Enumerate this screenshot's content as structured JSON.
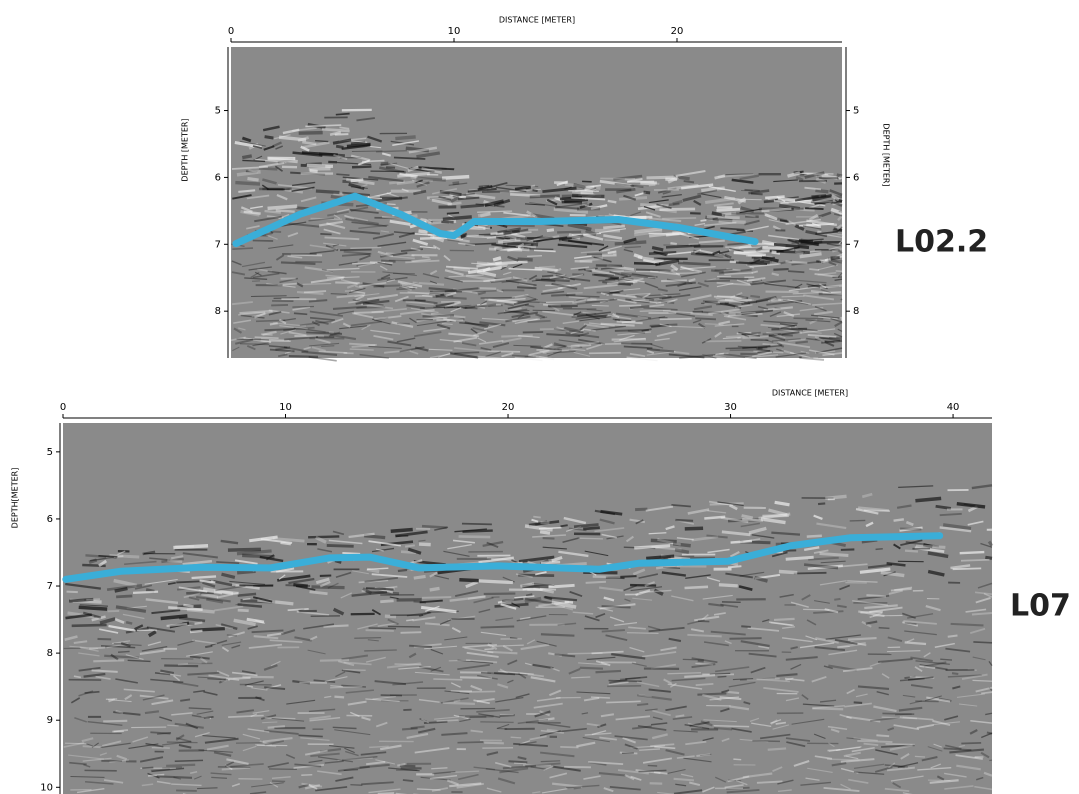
{
  "chart_data": [
    {
      "type": "line",
      "label": "L02.2",
      "xlabel": "DISTANCE [METER]",
      "ylabel": "DEPTH [METER]",
      "xlim": [
        0,
        27.4
      ],
      "ylim": [
        4.05,
        8.7
      ],
      "xticks": [
        0,
        10,
        20
      ],
      "yticks": [
        5,
        6,
        7,
        8
      ],
      "y_inverted": true,
      "right_axis": true,
      "series": [
        {
          "color": "#3aaed8",
          "x": [
            0.22,
            3.1,
            5.56,
            7.6,
            9.4,
            10.0,
            10.9,
            13.9,
            17.4,
            20.1,
            23.5
          ],
          "values": [
            6.99,
            6.55,
            6.28,
            6.55,
            6.84,
            6.87,
            6.66,
            6.66,
            6.63,
            6.75,
            6.96
          ]
        }
      ]
    },
    {
      "type": "line",
      "label": "L07",
      "xlabel": "DISTANCE [METER]",
      "ylabel": "DEPTH[METER]",
      "xlim": [
        0,
        41.75
      ],
      "ylim": [
        4.57,
        10.1
      ],
      "xticks": [
        0,
        10,
        20,
        30,
        40
      ],
      "yticks": [
        5,
        6,
        7,
        8,
        9,
        10
      ],
      "y_inverted": true,
      "right_axis": false,
      "series": [
        {
          "color": "#3aaed8",
          "x": [
            0.13,
            2.6,
            6.2,
            9.3,
            12.0,
            13.8,
            16.0,
            19.6,
            24.1,
            25.9,
            29.9,
            32.7,
            35.4,
            39.4
          ],
          "values": [
            6.9,
            6.78,
            6.72,
            6.73,
            6.58,
            6.57,
            6.73,
            6.7,
            6.75,
            6.66,
            6.63,
            6.4,
            6.28,
            6.25
          ]
        }
      ]
    }
  ]
}
